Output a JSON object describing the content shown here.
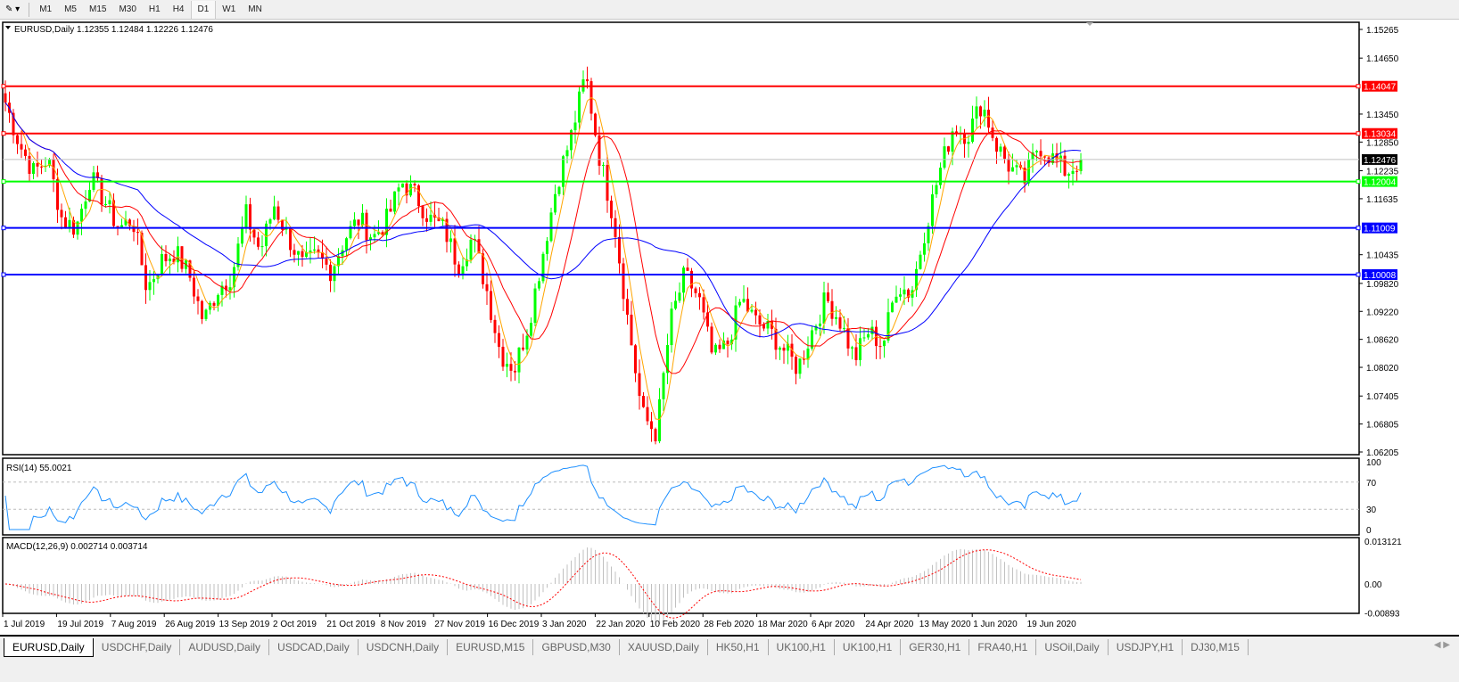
{
  "toolbar": {
    "timeframes": [
      "M1",
      "M5",
      "M15",
      "M30",
      "H1",
      "H4",
      "D1",
      "W1",
      "MN"
    ],
    "active": "D1"
  },
  "chart": {
    "header": "EURUSD,Daily  1.12355 1.12484 1.12226 1.12476",
    "symbol": "EURUSD",
    "period": "Daily",
    "ohlc": {
      "open": 1.12355,
      "high": 1.12484,
      "low": 1.12226,
      "close": 1.12476
    },
    "price_ticks": [
      "1.15265",
      "1.14650",
      "1.13450",
      "1.12850",
      "1.12235",
      "1.11635",
      "1.10435",
      "1.09820",
      "1.09220",
      "1.08620",
      "1.08020",
      "1.07405",
      "1.06805",
      "1.06205"
    ],
    "price_range": [
      1.06205,
      1.15265
    ],
    "bid": {
      "value": "1.12476",
      "color": "#000000"
    },
    "levels": [
      {
        "value": "1.14047",
        "color": "#ff0000"
      },
      {
        "value": "1.13034",
        "color": "#ff0000"
      },
      {
        "value": "1.12004",
        "color": "#00ff00"
      },
      {
        "value": "1.11009",
        "color": "#0000ff"
      },
      {
        "value": "1.10008",
        "color": "#0000ff"
      }
    ],
    "date_labels": [
      "1 Jul 2019",
      "19 Jul 2019",
      "7 Aug 2019",
      "26 Aug 2019",
      "13 Sep 2019",
      "2 Oct 2019",
      "21 Oct 2019",
      "8 Nov 2019",
      "27 Nov 2019",
      "16 Dec 2019",
      "3 Jan 2020",
      "22 Jan 2020",
      "10 Feb 2020",
      "28 Feb 2020",
      "18 Mar 2020",
      "6 Apr 2020",
      "24 Apr 2020",
      "13 May 2020",
      "1 Jun 2020",
      "19 Jun 2020"
    ],
    "close_path": [
      1.137,
      1.128,
      1.122,
      1.125,
      1.112,
      1.11,
      1.121,
      1.116,
      1.11,
      1.112,
      1.097,
      1.103,
      1.105,
      1.1,
      1.09,
      1.097,
      1.1,
      1.113,
      1.105,
      1.115,
      1.108,
      1.102,
      1.104,
      1.101,
      1.108,
      1.112,
      1.108,
      1.112,
      1.12,
      1.117,
      1.112,
      1.11,
      1.102,
      1.108,
      1.097,
      1.083,
      1.08,
      1.09,
      1.105,
      1.12,
      1.13,
      1.143,
      1.125,
      1.112,
      1.09,
      1.07,
      1.066,
      1.09,
      1.1,
      1.095,
      1.082,
      1.085,
      1.095,
      1.09,
      1.088,
      1.084,
      1.08,
      1.088,
      1.095,
      1.09,
      1.082,
      1.088,
      1.085,
      1.098,
      1.096,
      1.11,
      1.122,
      1.132,
      1.13,
      1.137,
      1.128,
      1.123,
      1.12,
      1.128,
      1.125,
      1.122,
      1.12476
    ],
    "colors": {
      "bull": "#00ff00",
      "bear": "#ff0000",
      "ma_fast": "#ffa500",
      "ma_mid": "#ff0000",
      "ma_slow": "#0000ff"
    }
  },
  "rsi": {
    "label": "RSI(14) 55.0021",
    "ticks": [
      "100",
      "70",
      "30",
      "0"
    ],
    "color": "#1e90ff"
  },
  "macd": {
    "label": "MACD(12,26,9) 0.002714 0.003714",
    "ticks": [
      "0.013121",
      "0.00",
      "-0.00893"
    ],
    "signal_color": "#ff0000",
    "hist_color": "#c0c0c0"
  },
  "tabs": [
    "EURUSD,Daily",
    "USDCHF,Daily",
    "AUDUSD,Daily",
    "USDCAD,Daily",
    "USDCNH,Daily",
    "EURUSD,M15",
    "GBPUSD,M30",
    "XAUUSD,Daily",
    "HK50,H1",
    "UK100,H1",
    "UK100,H1",
    "GER30,H1",
    "FRA40,H1",
    "USOil,Daily",
    "USDJPY,H1",
    "DJ30,M15"
  ],
  "active_tab": "EURUSD,Daily"
}
